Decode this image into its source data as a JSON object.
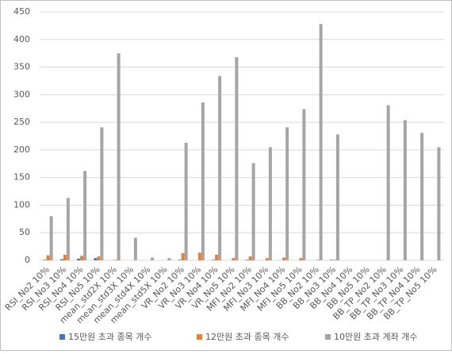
{
  "chart_data": {
    "type": "bar",
    "categories": [
      "RSI_No2 10%",
      "RSI_No3 10%",
      "RSI_No4 10%",
      "RSI_No5 10%",
      "mean_std2X 10%",
      "mean_std3X 10%",
      "mean_std4X 10%",
      "mean_std5X 10%",
      "VR_No2 10%",
      "VR_No3 10%",
      "VR_No4 10%",
      "VR_No5 10%",
      "MFI_No2 10%",
      "MFI_No3 10%",
      "MFI_No4 10%",
      "MFI_No5 10%",
      "BB_No2 10%",
      "BB_No3 10%",
      "BB_No4 10%",
      "BB_No5 10%",
      "BB_TP_No2 10%",
      "BB_TP_No3 10%",
      "BB_TP_No4 10%",
      "BB_TP_No5 10%"
    ],
    "series": [
      {
        "name": "15만원 초과 종목 개수",
        "color": "#4472c4",
        "values": [
          1,
          2,
          3,
          4,
          0,
          0,
          0,
          0,
          1,
          0,
          1,
          0,
          1,
          0,
          0,
          0,
          0,
          1,
          0,
          0,
          0,
          0,
          0,
          0
        ]
      },
      {
        "name": "12만원 초과 종목 개수",
        "color": "#ed7d31",
        "values": [
          9,
          10,
          8,
          7,
          1,
          0,
          0,
          0,
          13,
          14,
          10,
          4,
          7,
          4,
          5,
          4,
          1,
          1,
          0,
          0,
          0,
          0,
          0,
          0
        ]
      },
      {
        "name": "10만원 초과 계좌 개수",
        "color": "#a5a5a5",
        "values": [
          80,
          113,
          162,
          241,
          375,
          41,
          5,
          4,
          213,
          286,
          334,
          368,
          176,
          205,
          241,
          274,
          428,
          228,
          0,
          0,
          281,
          254,
          231,
          205
        ]
      }
    ],
    "ylim": [
      0,
      450
    ],
    "yticks": [
      0,
      50,
      100,
      150,
      200,
      250,
      300,
      350,
      400,
      450
    ],
    "grid": true
  }
}
